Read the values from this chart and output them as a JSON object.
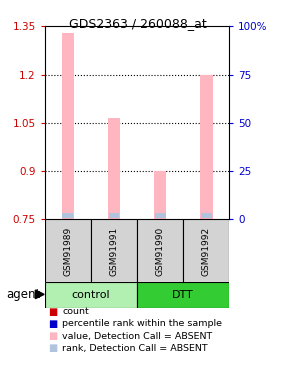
{
  "title": "GDS2363 / 260088_at",
  "samples": [
    "GSM91989",
    "GSM91991",
    "GSM91990",
    "GSM91992"
  ],
  "ylim": [
    0.75,
    1.35
  ],
  "yticks_left": [
    0.75,
    0.9,
    1.05,
    1.2,
    1.35
  ],
  "yticks_right": [
    0,
    25,
    50,
    75,
    100
  ],
  "bar_values": [
    1.33,
    1.065,
    0.9,
    1.2
  ],
  "bar_base": 0.75,
  "bar_color_absent": "#ffb6c1",
  "rank_color_absent": "#b0c4de",
  "sample_bg": "#d3d3d3",
  "group_control_color": "#b2f0b2",
  "group_dtt_color": "#33cc33",
  "ylabel_left_color": "#cc0000",
  "ylabel_right_color": "#0000cc",
  "legend_items": [
    {
      "label": "count",
      "color": "#cc0000"
    },
    {
      "label": "percentile rank within the sample",
      "color": "#0000cc"
    },
    {
      "label": "value, Detection Call = ABSENT",
      "color": "#ffb6c1"
    },
    {
      "label": "rank, Detection Call = ABSENT",
      "color": "#b0c4de"
    }
  ]
}
